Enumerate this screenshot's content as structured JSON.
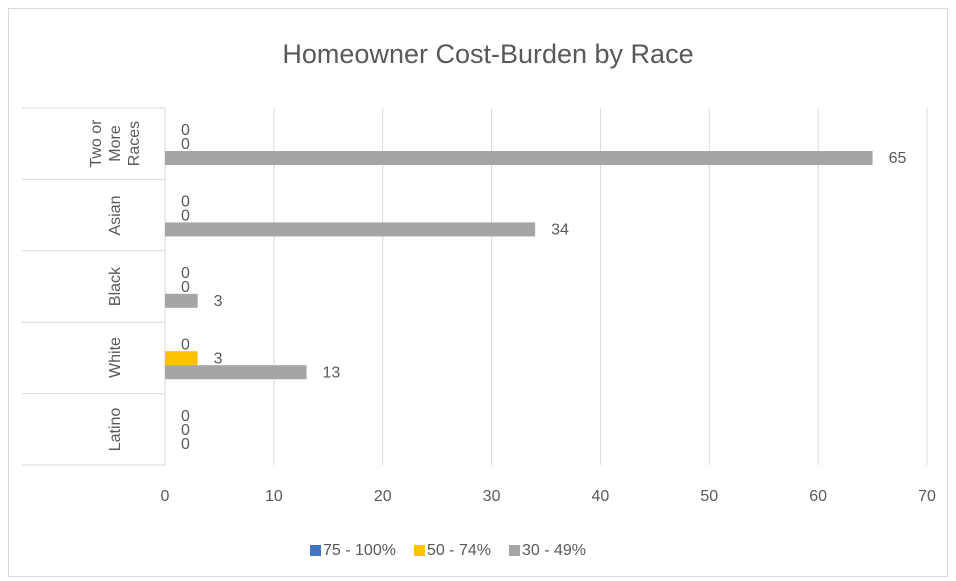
{
  "chart_data": {
    "type": "bar",
    "orientation": "horizontal",
    "title": "Homeowner Cost-Burden by Race",
    "categories": [
      "Latino",
      "White",
      "Black",
      "Asian",
      "Two or More Races"
    ],
    "series": [
      {
        "name": "75 - 100%",
        "color": "#4472c4",
        "values": [
          0,
          0,
          0,
          0,
          0
        ]
      },
      {
        "name": "50 - 74%",
        "color": "#ffc000",
        "values": [
          0,
          3,
          0,
          0,
          0
        ]
      },
      {
        "name": "30 - 49%",
        "color": "#a5a5a5",
        "values": [
          0,
          13,
          3,
          34,
          65
        ]
      }
    ],
    "xlim": [
      0,
      70
    ],
    "xticks": [
      0,
      10,
      20,
      30,
      40,
      50,
      60,
      70
    ],
    "grid": true,
    "legend": "bottom"
  }
}
